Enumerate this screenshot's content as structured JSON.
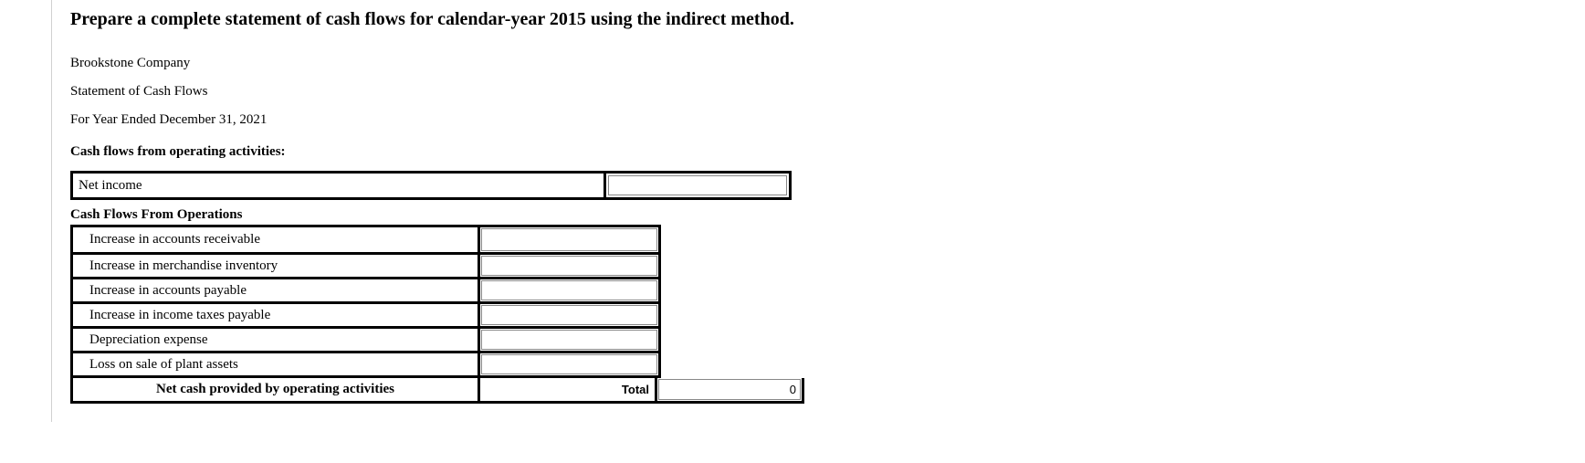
{
  "heading": "Prepare a complete statement of cash flows for calendar-year 2015 using the indirect method.",
  "company": "Brookstone Company",
  "stmt_title": "Statement of Cash Flows",
  "period": "For Year Ended December 31, 2021",
  "section_operating": "Cash flows from operating activities:",
  "netincome": {
    "label": "Net income",
    "value": ""
  },
  "subsection_ops": "Cash Flows From Operations",
  "ops": [
    {
      "label": "Increase in accounts receivable",
      "value": ""
    },
    {
      "label": "Increase in merchandise inventory",
      "value": ""
    },
    {
      "label": "Increase in accounts payable",
      "value": ""
    },
    {
      "label": "Increase in income taxes payable",
      "value": ""
    },
    {
      "label": "Depreciation expense",
      "value": ""
    },
    {
      "label": "Loss on sale of plant assets",
      "value": ""
    }
  ],
  "totals": {
    "label": "Net cash provided by operating activities",
    "mid": "Total",
    "value": "0"
  },
  "style": {
    "border_color": "#000000",
    "inner_border_color": "#888888",
    "page_border_color": "#d0d0d0",
    "background": "#ffffff",
    "heading_fontsize": 20,
    "body_fontsize": 15,
    "netincome_width": 790,
    "ops_width": 647,
    "totals_width": 804,
    "label_col_width": 446
  }
}
